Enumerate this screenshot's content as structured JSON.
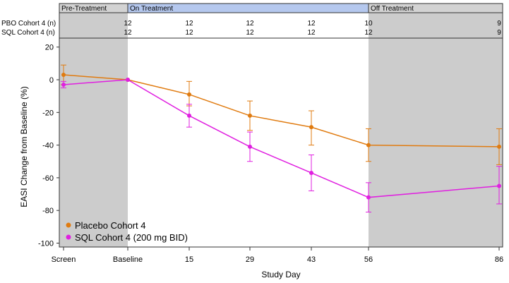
{
  "chart_data": {
    "type": "line",
    "xlabel": "Study Day",
    "ylabel": "EASI Change from Baseline (%)",
    "ylim": [
      -100,
      20
    ],
    "yticks": [
      20,
      0,
      -20,
      -40,
      -60,
      -80,
      -100
    ],
    "categories": [
      "Screen",
      "Baseline",
      "15",
      "29",
      "43",
      "56",
      "86"
    ],
    "phases": [
      {
        "label": "Pre-Treatment",
        "start": "Screen",
        "end": "Baseline"
      },
      {
        "label": "On Treatment",
        "start": "Baseline",
        "end": "56"
      },
      {
        "label": "Off Treatment",
        "start": "56",
        "end": "86"
      }
    ],
    "n_rows": [
      {
        "label": "PBO Cohort 4 (n)",
        "values": [
          "",
          "12",
          "12",
          "12",
          "12",
          "10",
          "9"
        ]
      },
      {
        "label": "SQL Cohort 4 (n)",
        "values": [
          "",
          "12",
          "12",
          "12",
          "12",
          "12",
          "9"
        ]
      }
    ],
    "series": [
      {
        "name": "Placebo Cohort 4",
        "color": "#e07b10",
        "values": [
          3,
          0,
          -9,
          -22,
          -29,
          -40,
          -41
        ],
        "err_lo": [
          -3,
          0,
          -16,
          -31,
          -40,
          -50,
          -52
        ],
        "err_hi": [
          9,
          0,
          -1,
          -13,
          -19,
          -30,
          -30
        ]
      },
      {
        "name": "SQL Cohort 4 (200 mg BID)",
        "color": "#e020e0",
        "values": [
          -3,
          0,
          -22,
          -41,
          -57,
          -72,
          -65
        ],
        "err_lo": [
          -5,
          0,
          -29,
          -50,
          -68,
          -81,
          -76
        ],
        "err_hi": [
          -1,
          0,
          -15,
          -32,
          -46,
          -63,
          -53
        ]
      }
    ],
    "legend_position": "bottom-left"
  }
}
